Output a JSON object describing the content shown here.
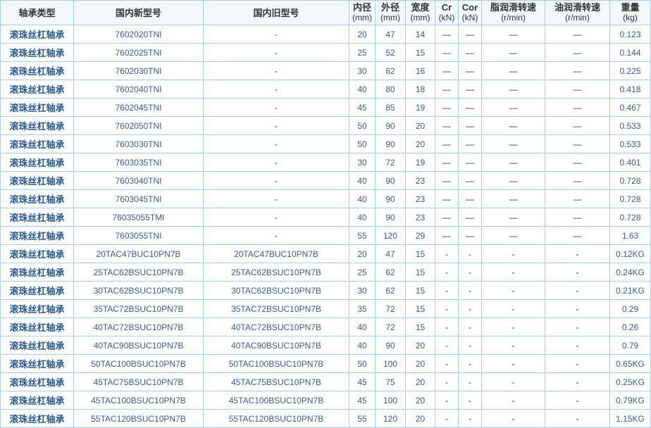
{
  "headers": [
    {
      "label": "轴承类型",
      "unit": ""
    },
    {
      "label": "国内新型号",
      "unit": ""
    },
    {
      "label": "国内旧型号",
      "unit": ""
    },
    {
      "label": "内径",
      "unit": "(mm)"
    },
    {
      "label": "外径",
      "unit": "(mm)"
    },
    {
      "label": "宽度",
      "unit": "(mm)"
    },
    {
      "label": "Cr",
      "unit": "(kN)"
    },
    {
      "label": "Cor",
      "unit": "(kN)"
    },
    {
      "label": "脂润滑转速",
      "unit": "(r/min)"
    },
    {
      "label": "油润滑转速",
      "unit": "(r/min)"
    },
    {
      "label": "重量",
      "unit": "(kg)"
    }
  ],
  "rows": [
    [
      "滚珠丝杠轴承",
      "7602020TNI",
      "-",
      "20",
      "47",
      "14",
      "—",
      "—",
      "—",
      "—",
      "0.123"
    ],
    [
      "滚珠丝杠轴承",
      "7602025TNI",
      "-",
      "25",
      "52",
      "15",
      "—",
      "—",
      "—",
      "—",
      "0.144"
    ],
    [
      "滚珠丝杠轴承",
      "7602030TNI",
      "-",
      "30",
      "62",
      "16",
      "—",
      "—",
      "—",
      "—",
      "0.225"
    ],
    [
      "滚珠丝杠轴承",
      "7602040TNI",
      "-",
      "40",
      "80",
      "18",
      "—",
      "—",
      "—",
      "—",
      "0.418"
    ],
    [
      "滚珠丝杠轴承",
      "7602045TNI",
      "-",
      "45",
      "85",
      "19",
      "—",
      "—",
      "—",
      "—",
      "0.467"
    ],
    [
      "滚珠丝杠轴承",
      "7602050TNI",
      "-",
      "50",
      "90",
      "20",
      "—",
      "—",
      "—",
      "—",
      "0.533"
    ],
    [
      "滚珠丝杠轴承",
      "7603030TNI",
      "-",
      "50",
      "90",
      "20",
      "—",
      "—",
      "—",
      "—",
      "0.533"
    ],
    [
      "滚珠丝杠轴承",
      "7603035TNI",
      "-",
      "30",
      "72",
      "19",
      "—",
      "—",
      "—",
      "—",
      "0.401"
    ],
    [
      "滚珠丝杠轴承",
      "7603040TNI",
      "-",
      "40",
      "90",
      "23",
      "—",
      "—",
      "—",
      "—",
      "0.728"
    ],
    [
      "滚珠丝杠轴承",
      "7603045TNI",
      "-",
      "40",
      "90",
      "23",
      "—",
      "—",
      "—",
      "—",
      "0.728"
    ],
    [
      "滚珠丝杠轴承",
      "76035055TMI",
      "-",
      "40",
      "90",
      "23",
      "—",
      "—",
      "—",
      "—",
      "0.728"
    ],
    [
      "滚珠丝杠轴承",
      "7603055TNI",
      "-",
      "55",
      "120",
      "29",
      "—",
      "—",
      "—",
      "—",
      "1.63"
    ],
    [
      "滚珠丝杠轴承",
      "20TAC47BUC10PN7B",
      "20TAC47BUC10PN7B",
      "20",
      "47",
      "15",
      "-",
      "-",
      "-",
      "-",
      "0.12KG"
    ],
    [
      "滚珠丝杠轴承",
      "25TAC62BSUC10PN7B",
      "25TAC62BSUC10PN7B",
      "25",
      "62",
      "15",
      "-",
      "-",
      "-",
      "-",
      "0.24KG"
    ],
    [
      "滚珠丝杠轴承",
      "30TAC62BSUC10PN7B",
      "30TAC62BSUC10PN7B",
      "30",
      "62",
      "15",
      "-",
      "-",
      "-",
      "-",
      "0.21KG"
    ],
    [
      "滚珠丝杠轴承",
      "35TAC72BSUC10PN7B",
      "35TAC72BSUC10PN7B",
      "35",
      "72",
      "15",
      "-",
      "-",
      "-",
      "-",
      "0.29"
    ],
    [
      "滚珠丝杠轴承",
      "40TAC72BSUC10PN7B",
      "40TAC72BSUC10PN7B",
      "40",
      "72",
      "15",
      "-",
      "-",
      "-",
      "-",
      "0.26"
    ],
    [
      "滚珠丝杠轴承",
      "40TAC90BSUC10PN7B",
      "40TAC90BSUC10PN7B",
      "40",
      "90",
      "20",
      "-",
      "-",
      "-",
      "-",
      "0.79"
    ],
    [
      "滚珠丝杠轴承",
      "50TAC100BSUC10PN7B",
      "50TAC100BSUC10PN7B",
      "50",
      "100",
      "20",
      "-",
      "-",
      "-",
      "-",
      "0.65KG"
    ],
    [
      "滚珠丝杠轴承",
      "45TAC75BSUC10PN7B",
      "45TAC75BSUC10PN7B",
      "45",
      "75",
      "20",
      "-",
      "-",
      "-",
      "-",
      "0.25KG"
    ],
    [
      "滚珠丝杠轴承",
      "45TAC100BSUC10PN7B",
      "45TAC100BSUC10PN7B",
      "45",
      "100",
      "20",
      "-",
      "-",
      "-",
      "-",
      "0.79KG"
    ],
    [
      "滚珠丝杠轴承",
      "55TAC120BSUC10PN7B",
      "55TAC120BSUC10PN7B",
      "55",
      "120",
      "20",
      "-",
      "-",
      "-",
      "-",
      "1.15KG"
    ]
  ]
}
